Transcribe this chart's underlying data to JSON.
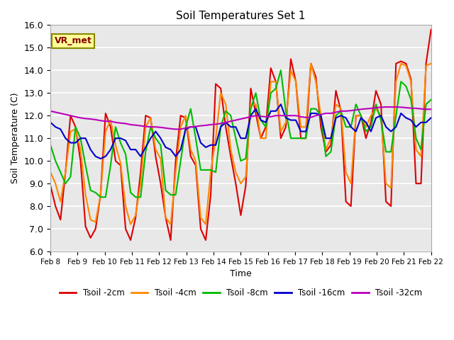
{
  "title": "Soil Temperatures Set 1",
  "xlabel": "Time",
  "ylabel": "Soil Temperature (C)",
  "ylim": [
    6.0,
    16.0
  ],
  "yticks": [
    6.0,
    7.0,
    8.0,
    9.0,
    10.0,
    11.0,
    12.0,
    13.0,
    14.0,
    15.0,
    16.0
  ],
  "xtick_labels": [
    "Feb 8",
    "Feb 9",
    "Feb 10",
    "Feb 11",
    "Feb 12",
    "Feb 13",
    "Feb 14",
    "Feb 15",
    "Feb 16",
    "Feb 17",
    "Feb 18",
    "Feb 19",
    "Feb 20",
    "Feb 21",
    "Feb 22"
  ],
  "background_color": "#e8e8e8",
  "grid_color": "#ffffff",
  "series": {
    "Tsoil -2cm": {
      "color": "#dd0000",
      "values": [
        8.9,
        8.0,
        7.4,
        9.5,
        12.0,
        11.5,
        10.0,
        7.1,
        6.6,
        7.0,
        8.5,
        12.1,
        11.5,
        10.0,
        9.8,
        7.0,
        6.5,
        7.5,
        9.5,
        12.0,
        11.9,
        10.2,
        9.0,
        7.5,
        6.5,
        10.0,
        12.0,
        11.9,
        10.2,
        9.8,
        7.0,
        6.5,
        8.5,
        13.4,
        13.2,
        11.5,
        10.2,
        9.0,
        7.6,
        8.9,
        13.2,
        12.1,
        11.0,
        11.5,
        14.1,
        13.5,
        11.0,
        11.5,
        14.5,
        13.5,
        11.0,
        11.0,
        14.3,
        13.7,
        11.5,
        10.4,
        10.7,
        13.1,
        12.2,
        8.2,
        8.0,
        12.0,
        12.0,
        11.0,
        11.7,
        13.1,
        12.5,
        8.2,
        8.0,
        14.3,
        14.4,
        14.3,
        13.6,
        9.0,
        9.0,
        14.3,
        15.8
      ]
    },
    "Tsoil -4cm": {
      "color": "#ff8800",
      "values": [
        9.5,
        9.0,
        8.2,
        9.5,
        11.3,
        11.4,
        10.5,
        8.5,
        7.4,
        7.3,
        8.5,
        11.3,
        11.8,
        10.7,
        9.9,
        8.0,
        7.2,
        7.6,
        9.0,
        11.5,
        11.9,
        10.5,
        10.1,
        7.5,
        7.2,
        9.5,
        11.5,
        12.0,
        10.5,
        10.0,
        7.5,
        7.2,
        9.5,
        11.0,
        13.0,
        12.5,
        10.5,
        9.5,
        9.0,
        9.3,
        12.5,
        12.5,
        11.0,
        11.0,
        13.5,
        13.5,
        11.3,
        11.7,
        14.0,
        13.5,
        11.5,
        11.5,
        14.3,
        13.5,
        12.0,
        10.5,
        11.0,
        12.5,
        12.3,
        9.5,
        9.0,
        12.0,
        12.0,
        11.5,
        12.0,
        12.3,
        12.0,
        9.0,
        8.8,
        13.5,
        14.3,
        14.2,
        13.5,
        10.5,
        10.2,
        14.2,
        14.3
      ]
    },
    "Tsoil -8cm": {
      "color": "#00bb00",
      "values": [
        10.7,
        10.0,
        9.5,
        9.0,
        9.3,
        11.5,
        11.0,
        9.8,
        8.7,
        8.6,
        8.4,
        8.4,
        9.8,
        11.5,
        10.8,
        10.3,
        8.6,
        8.4,
        8.4,
        10.4,
        11.5,
        11.0,
        10.7,
        8.7,
        8.5,
        8.5,
        10.0,
        11.5,
        12.3,
        11.0,
        9.6,
        9.6,
        9.6,
        9.5,
        11.5,
        12.2,
        12.0,
        11.0,
        10.0,
        10.1,
        12.3,
        13.0,
        11.8,
        11.5,
        13.0,
        13.2,
        14.0,
        12.2,
        11.0,
        11.0,
        11.0,
        11.0,
        12.3,
        12.3,
        12.0,
        10.2,
        10.4,
        12.0,
        12.2,
        11.5,
        11.5,
        12.5,
        12.0,
        11.3,
        11.5,
        12.5,
        11.8,
        10.4,
        10.4,
        12.0,
        13.5,
        13.3,
        12.7,
        11.0,
        10.5,
        12.5,
        12.7
      ]
    },
    "Tsoil -16cm": {
      "color": "#0000cc",
      "values": [
        11.7,
        11.5,
        11.4,
        11.0,
        10.8,
        10.8,
        11.0,
        11.0,
        10.5,
        10.2,
        10.1,
        10.2,
        10.5,
        11.0,
        11.0,
        10.9,
        10.5,
        10.5,
        10.2,
        10.6,
        11.0,
        11.3,
        11.0,
        10.6,
        10.5,
        10.2,
        10.5,
        11.4,
        11.5,
        11.5,
        10.8,
        10.6,
        10.7,
        10.7,
        11.5,
        11.7,
        11.5,
        11.5,
        11.0,
        11.0,
        12.0,
        12.3,
        11.8,
        11.7,
        12.2,
        12.2,
        12.5,
        11.9,
        11.8,
        11.8,
        11.3,
        11.3,
        12.1,
        12.1,
        12.0,
        11.0,
        11.0,
        11.9,
        12.0,
        11.9,
        11.5,
        11.3,
        11.9,
        11.7,
        11.3,
        11.9,
        12.0,
        11.5,
        11.3,
        11.5,
        12.1,
        11.9,
        11.8,
        11.5,
        11.7,
        11.7,
        11.9
      ]
    },
    "Tsoil -32cm": {
      "color": "#bb00bb",
      "values": [
        12.2,
        12.15,
        12.1,
        12.05,
        12.0,
        11.95,
        11.9,
        11.87,
        11.85,
        11.82,
        11.78,
        11.75,
        11.75,
        11.7,
        11.67,
        11.65,
        11.6,
        11.58,
        11.55,
        11.52,
        11.5,
        11.5,
        11.48,
        11.45,
        11.42,
        11.4,
        11.4,
        11.45,
        11.5,
        11.52,
        11.55,
        11.57,
        11.6,
        11.62,
        11.65,
        11.7,
        11.75,
        11.8,
        11.85,
        11.9,
        11.95,
        12.0,
        11.97,
        11.95,
        11.95,
        12.0,
        12.0,
        12.0,
        12.0,
        12.0,
        11.95,
        11.92,
        11.92,
        12.0,
        12.05,
        12.1,
        12.1,
        12.15,
        12.2,
        12.2,
        12.22,
        12.25,
        12.28,
        12.3,
        12.32,
        12.35,
        12.37,
        12.38,
        12.38,
        12.38,
        12.37,
        12.35,
        12.33,
        12.32,
        12.3,
        12.28,
        12.28
      ]
    }
  },
  "legend_label": "VR_met",
  "annotation_box_color": "#ffff99",
  "annotation_text_color": "#880000"
}
